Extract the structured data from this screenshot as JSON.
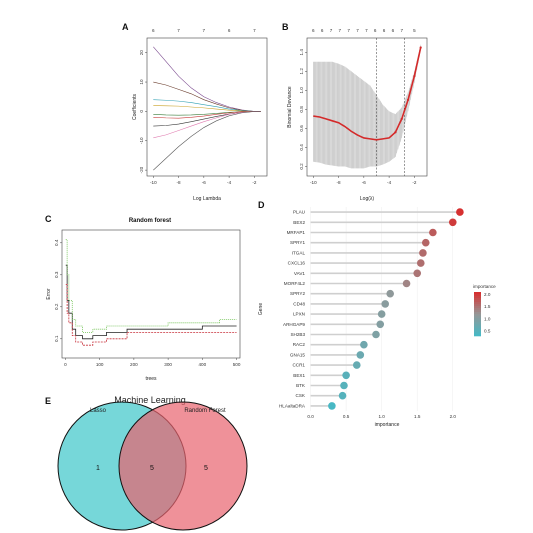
{
  "panels": {
    "A": {
      "letter": "A"
    },
    "B": {
      "letter": "B"
    },
    "C": {
      "letter": "C"
    },
    "D": {
      "letter": "D"
    },
    "E": {
      "letter": "E"
    }
  },
  "chart_data": [
    {
      "panel": "A",
      "type": "line",
      "xlabel": "Log Lambda",
      "ylabel": "Coefficients",
      "xlim": [
        -10.5,
        -1
      ],
      "ylim": [
        -22,
        25
      ],
      "x_ticks": [
        "-10",
        "-8",
        "-6",
        "-4",
        "-2"
      ],
      "x_tick_values": [
        -10,
        -8,
        -6,
        -4,
        -2
      ],
      "y_ticks": [
        "-20",
        "-10",
        "0",
        "10",
        "20"
      ],
      "y_tick_values": [
        -20,
        -10,
        0,
        10,
        20
      ],
      "top_ticks": [
        "6",
        "7",
        "7",
        "6",
        "7"
      ],
      "top_tick_values": [
        -10,
        -8,
        -6,
        -4,
        -2
      ],
      "x": [
        -10,
        -9,
        -8,
        -7,
        -6,
        -5,
        -4,
        -3,
        -2,
        -1.5
      ],
      "series": [
        {
          "color": "#7b4a8f",
          "values": [
            22,
            17,
            12,
            8,
            5,
            3,
            1.5,
            0.5,
            0,
            0
          ]
        },
        {
          "color": "#6a3c2c",
          "values": [
            10,
            9,
            7.5,
            6,
            4,
            2.5,
            1.2,
            0.4,
            0,
            0
          ]
        },
        {
          "color": "#2e9fb2",
          "values": [
            4,
            3.8,
            3.5,
            3,
            2.3,
            1.6,
            0.8,
            0.3,
            0,
            0
          ]
        },
        {
          "color": "#c9a227",
          "values": [
            2,
            1.9,
            1.8,
            1.5,
            1.2,
            0.8,
            0.4,
            0.1,
            0,
            0
          ]
        },
        {
          "color": "#3a7d3a",
          "values": [
            -1,
            -1.2,
            -1.3,
            -1.2,
            -1,
            -0.7,
            -0.3,
            -0.1,
            0,
            0
          ]
        },
        {
          "color": "#c43b3b",
          "values": [
            -2,
            -2.2,
            -2.3,
            -2,
            -1.6,
            -1,
            -0.5,
            -0.1,
            0,
            0
          ]
        },
        {
          "color": "#333333",
          "values": [
            -5,
            -4.8,
            -4.3,
            -3.5,
            -2.6,
            -1.7,
            -0.9,
            -0.3,
            0,
            0
          ]
        },
        {
          "color": "#e07bb0",
          "values": [
            -9,
            -8,
            -6.5,
            -5,
            -3.5,
            -2.2,
            -1,
            -0.3,
            0,
            0
          ]
        },
        {
          "color": "#5a5a5a",
          "values": [
            -20,
            -16,
            -12,
            -8.5,
            -5.5,
            -3.2,
            -1.5,
            -0.5,
            0,
            0
          ]
        }
      ]
    },
    {
      "panel": "B",
      "type": "line",
      "xlabel": "Log(λ)",
      "ylabel": "Binomial Deviance",
      "xlim": [
        -10.5,
        -1
      ],
      "ylim": [
        0.1,
        1.55
      ],
      "x_ticks": [
        "-10",
        "-8",
        "-6",
        "-4",
        "-2"
      ],
      "x_tick_values": [
        -10,
        -8,
        -6,
        -4,
        -2
      ],
      "y_ticks": [
        "0.2",
        "0.4",
        "0.6",
        "0.8",
        "1.0",
        "1.2",
        "1.4"
      ],
      "y_tick_values": [
        0.2,
        0.4,
        0.6,
        0.8,
        1.0,
        1.2,
        1.4
      ],
      "top_ticks": [
        "6",
        "6",
        "7",
        "7",
        "7",
        "7",
        "7",
        "6",
        "6",
        "6",
        "7",
        "5"
      ],
      "top_tick_values": [
        -10,
        -9.3,
        -8.6,
        -7.9,
        -7.2,
        -6.5,
        -5.8,
        -5.1,
        -4.4,
        -3.7,
        -3.0,
        -2.0
      ],
      "vlines": [
        -5,
        -2.8
      ],
      "x": [
        -10,
        -9.5,
        -9,
        -8.5,
        -8,
        -7.5,
        -7,
        -6.5,
        -6,
        -5.5,
        -5,
        -4.5,
        -4,
        -3.5,
        -3,
        -2.5,
        -2,
        -1.5
      ],
      "values": [
        0.73,
        0.72,
        0.7,
        0.68,
        0.66,
        0.62,
        0.57,
        0.53,
        0.5,
        0.49,
        0.48,
        0.49,
        0.5,
        0.56,
        0.7,
        0.9,
        1.15,
        1.45
      ],
      "upper": [
        1.3,
        1.3,
        1.3,
        1.3,
        1.28,
        1.25,
        1.2,
        1.15,
        1.1,
        1.05,
        0.95,
        0.85,
        0.78,
        0.75,
        0.82,
        0.98,
        1.2,
        1.48
      ],
      "lower": [
        0.25,
        0.24,
        0.22,
        0.21,
        0.2,
        0.2,
        0.18,
        0.18,
        0.18,
        0.2,
        0.2,
        0.22,
        0.25,
        0.3,
        0.5,
        0.78,
        1.08,
        1.42
      ]
    },
    {
      "panel": "C",
      "type": "line",
      "title": "Random forest",
      "xlabel": "trees",
      "ylabel": "Error",
      "xlim": [
        -10,
        510
      ],
      "ylim": [
        0.04,
        0.44
      ],
      "x_ticks": [
        "0",
        "100",
        "200",
        "300",
        "400",
        "500"
      ],
      "x_tick_values": [
        0,
        100,
        200,
        300,
        400,
        500
      ],
      "y_ticks": [
        "0.1",
        "0.2",
        "0.3",
        "0.4"
      ],
      "y_tick_values": [
        0.1,
        0.2,
        0.3,
        0.4
      ],
      "series": [
        {
          "color": "#222222",
          "x": [
            1,
            5,
            10,
            20,
            30,
            50,
            80,
            120,
            180,
            250,
            300,
            350,
            400,
            450,
            500
          ],
          "values": [
            0.33,
            0.22,
            0.18,
            0.13,
            0.11,
            0.1,
            0.11,
            0.12,
            0.13,
            0.13,
            0.13,
            0.13,
            0.14,
            0.14,
            0.14
          ]
        },
        {
          "color": "#c8313b",
          "x": [
            1,
            5,
            10,
            20,
            30,
            50,
            80,
            120,
            180,
            250,
            300,
            350,
            400,
            450,
            500
          ],
          "values": [
            0.27,
            0.18,
            0.15,
            0.11,
            0.09,
            0.08,
            0.09,
            0.1,
            0.12,
            0.12,
            0.12,
            0.12,
            0.12,
            0.12,
            0.12
          ]
        },
        {
          "color": "#6abf4b",
          "x": [
            1,
            5,
            10,
            20,
            30,
            50,
            80,
            120,
            180,
            250,
            300,
            350,
            400,
            450,
            500
          ],
          "values": [
            0.41,
            0.3,
            0.22,
            0.16,
            0.14,
            0.12,
            0.13,
            0.14,
            0.14,
            0.14,
            0.15,
            0.15,
            0.15,
            0.16,
            0.16
          ]
        }
      ]
    },
    {
      "panel": "D",
      "type": "scatter",
      "xlabel": "importance",
      "ylabel": "Gene",
      "xlim": [
        -0.05,
        2.2
      ],
      "x_ticks": [
        "0.0",
        "0.5",
        "1.0",
        "1.5",
        "2.0"
      ],
      "x_tick_values": [
        0,
        0.5,
        1,
        1.5,
        2
      ],
      "legend_title": "importance",
      "legend_ticks": [
        "2.0",
        "1.5",
        "1.0",
        "0.5"
      ],
      "legend_tick_values": [
        2.0,
        1.5,
        1.0,
        0.5
      ],
      "legend_range": [
        0.3,
        2.1
      ],
      "categories": [
        "PLAU",
        "BEX2",
        "MRFAP1",
        "SPRY1",
        "ITGAL",
        "CXCL16",
        "VAV1",
        "MORF4L2",
        "SPRY2",
        "CD48",
        "LPXN",
        "ARHGAP9",
        "SH2B3",
        "RAC2",
        "GNA15",
        "CCR1",
        "BEX1",
        "BTK",
        "CSK",
        "HLAaltaDRA"
      ],
      "values": [
        2.1,
        2.0,
        1.72,
        1.62,
        1.58,
        1.55,
        1.5,
        1.35,
        1.12,
        1.05,
        1.0,
        0.98,
        0.92,
        0.75,
        0.7,
        0.65,
        0.5,
        0.47,
        0.45,
        0.3
      ]
    },
    {
      "panel": "E",
      "type": "venn",
      "title": "Machine Learning",
      "sets": [
        {
          "name": "Lasso",
          "only": "1",
          "color": "#48c9cc"
        },
        {
          "name": "Random Forest",
          "only": "5",
          "color": "#e8636e"
        }
      ],
      "intersection": "5"
    }
  ]
}
